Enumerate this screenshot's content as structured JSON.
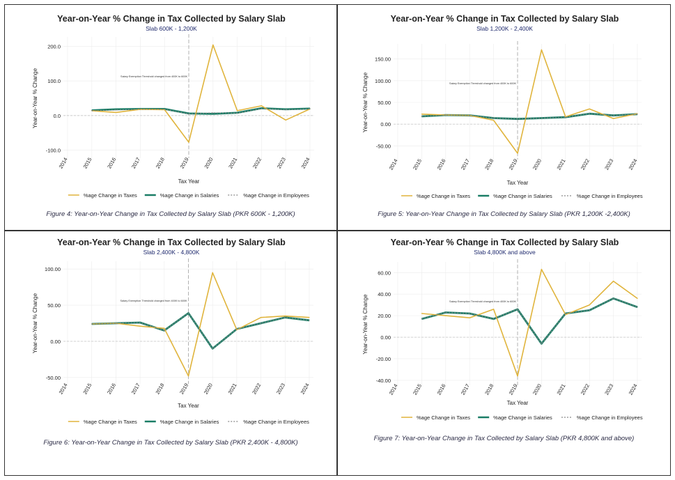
{
  "legend_labels": {
    "taxes": "%age Change in Taxes",
    "salaries": "%age Change in Salaries",
    "employees": "%age Change in Employees"
  },
  "colors": {
    "taxes": "#e0b43c",
    "salaries": "#1a7d66",
    "employees": "#888888",
    "threshold": "#aaaaaa"
  },
  "chart_data": [
    {
      "type": "line",
      "title": "Year-on-Year % Change in Tax Collected by Salary Slab",
      "subtitle": "Slab 600K - 1,200K",
      "xlabel": "Tax Year",
      "ylabel": "Year-on-Year % Change",
      "categories": [
        "2014",
        "2015",
        "2016",
        "2017",
        "2018",
        "2019",
        "2020",
        "2021",
        "2022",
        "2023",
        "2024"
      ],
      "ylim": [
        -115,
        215
      ],
      "yticks": [
        -100,
        0,
        100,
        200
      ],
      "ytick_labels": [
        "-100.0",
        "0.0",
        "100.0",
        "200.0"
      ],
      "annotation": "Salary Exemption Threshold changed from 400K to 600K",
      "threshold_category": "2019",
      "legend_position": "bottom",
      "grid": true,
      "series": [
        {
          "name": "%age Change in Taxes",
          "values": [
            null,
            14,
            9,
            18,
            17,
            -77,
            204,
            14,
            28,
            -13,
            19
          ]
        },
        {
          "name": "%age Change in Salaries",
          "values": [
            null,
            15,
            18,
            19,
            19,
            6,
            5,
            8,
            21,
            18,
            20
          ]
        },
        {
          "name": "%age Change in Employees",
          "values": [
            null,
            14,
            16,
            18,
            18,
            5,
            8,
            7,
            20,
            17,
            19
          ]
        }
      ],
      "caption": "Figure 4: Year-on-Year Change in Tax Collected by Salary Slab (PKR 600K - 1,200K)"
    },
    {
      "type": "line",
      "title": "Year-on-Year % Change in Tax Collected by Salary Slab",
      "subtitle": "Slab 1,200K - 2,400K",
      "xlabel": "Tax Year",
      "ylabel": "Year-on-Year % Change",
      "categories": [
        "2014",
        "2015",
        "2016",
        "2017",
        "2018",
        "2019",
        "2020",
        "2021",
        "2022",
        "2023",
        "2024"
      ],
      "ylim": [
        -75,
        175
      ],
      "yticks": [
        -50,
        0,
        50,
        100,
        150
      ],
      "ytick_labels": [
        "-50.00",
        "0.00",
        "50.00",
        "100.00",
        "150.00"
      ],
      "annotation": "Salary Exemption Threshold changed from 400K to 600K",
      "threshold_category": "2019",
      "legend_position": "bottom",
      "grid": true,
      "series": [
        {
          "name": "%age Change in Taxes",
          "values": [
            null,
            23,
            21,
            20,
            9,
            -67,
            171,
            17,
            35,
            13,
            24
          ]
        },
        {
          "name": "%age Change in Salaries",
          "values": [
            null,
            18,
            21,
            20,
            14,
            12,
            14,
            16,
            24,
            20,
            23
          ]
        },
        {
          "name": "%age Change in Employees",
          "values": [
            null,
            18,
            21,
            20,
            14,
            12,
            14,
            16,
            24,
            20,
            23
          ]
        }
      ],
      "caption": "Figure 5: Year-on-Year Change in Tax Collected by Salary Slab (PKR 1,200K -2,400K)"
    },
    {
      "type": "line",
      "title": "Year-on-Year % Change in Tax Collected by Salary Slab",
      "subtitle": "Slab 2,400K - 4,800K",
      "xlabel": "Tax Year",
      "ylabel": "Year-on-Year % Change",
      "categories": [
        "2014",
        "2015",
        "2016",
        "2017",
        "2018",
        "2019",
        "2020",
        "2021",
        "2022",
        "2023",
        "2024"
      ],
      "ylim": [
        -55,
        105
      ],
      "yticks": [
        -50,
        0,
        50,
        100
      ],
      "ytick_labels": [
        "-50.00",
        "0.00",
        "50.00",
        "100.00"
      ],
      "annotation": "Salary Exemption Threshold changed from 400K to 600K",
      "threshold_category": "2019",
      "legend_position": "bottom",
      "grid": true,
      "series": [
        {
          "name": "%age Change in Taxes",
          "values": [
            null,
            24,
            25,
            21,
            18,
            -48,
            95,
            16,
            33,
            35,
            33
          ]
        },
        {
          "name": "%age Change in Salaries",
          "values": [
            null,
            24,
            25,
            26,
            15,
            39,
            -10,
            17,
            25,
            33,
            29
          ]
        },
        {
          "name": "%age Change in Employees",
          "values": [
            null,
            24,
            25,
            26,
            15,
            39,
            -10,
            17,
            25,
            33,
            29
          ]
        }
      ],
      "caption": "Figure 6: Year-on-Year Change in Tax Collected by Salary Slab (PKR 2,400K - 4,800K)"
    },
    {
      "type": "line",
      "title": "Year-on-Year % Change in Tax Collected by Salary Slab",
      "subtitle": "Slab 4,800K and above",
      "xlabel": "Tax Year",
      "ylabel": "Year-on-Year % Change",
      "categories": [
        "2014",
        "2015",
        "2016",
        "2017",
        "2018",
        "2019",
        "2020",
        "2021",
        "2022",
        "2023",
        "2024"
      ],
      "ylim": [
        -42,
        66
      ],
      "yticks": [
        -40,
        -20,
        0,
        20,
        40,
        60
      ],
      "ytick_labels": [
        "-40.00",
        "-20.00",
        "0.00",
        "20.00",
        "40.00",
        "60.00"
      ],
      "annotation": "Salary Exemption Threshold changed from 400K to 600K",
      "threshold_category": "2019",
      "legend_position": "bottom",
      "grid": true,
      "series": [
        {
          "name": "%age Change in Taxes",
          "values": [
            null,
            22,
            20,
            18,
            26,
            -36,
            63,
            21,
            30,
            52,
            36
          ]
        },
        {
          "name": "%age Change in Salaries",
          "values": [
            null,
            17,
            23,
            22,
            17,
            26,
            -6,
            22,
            25,
            36,
            28
          ]
        },
        {
          "name": "%age Change in Employees",
          "values": [
            null,
            17,
            23,
            22,
            17,
            26,
            -6,
            22,
            25,
            36,
            28
          ]
        }
      ],
      "caption": "Figure 7: Year-on-Year Change in Tax Collected by Salary Slab (PKR 4,800K and above)"
    }
  ]
}
